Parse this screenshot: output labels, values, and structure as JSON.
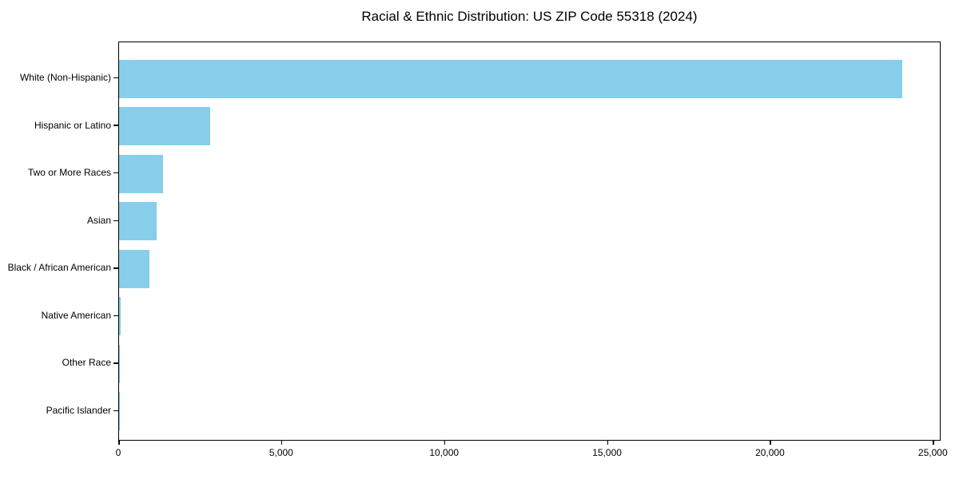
{
  "page": {
    "title": "Racial & Ethnic Distribution: US ZIP Code 55318 (2024)"
  },
  "chart_data": {
    "type": "bar",
    "orientation": "horizontal",
    "title": "Racial & Ethnic Distribution: US ZIP Code 55318 (2024)",
    "categories": [
      "White (Non-Hispanic)",
      "Hispanic or Latino",
      "Two or More Races",
      "Asian",
      "Black / African American",
      "Native American",
      "Other Race",
      "Pacific Islander"
    ],
    "values": [
      24035,
      2805,
      1355,
      1165,
      940,
      40,
      15,
      5
    ],
    "xlabel": "",
    "ylabel": "",
    "xlim": [
      0,
      25238
    ],
    "x_ticks": [
      0,
      5000,
      10000,
      15000,
      20000,
      25000
    ],
    "x_tick_labels": [
      "0",
      "5,000",
      "10,000",
      "15,000",
      "20,000",
      "25,000"
    ],
    "bar_color": "#87CEEB",
    "grid": false,
    "legend_position": "none",
    "background_color": "#ffffff",
    "axis_color": "#000000"
  }
}
